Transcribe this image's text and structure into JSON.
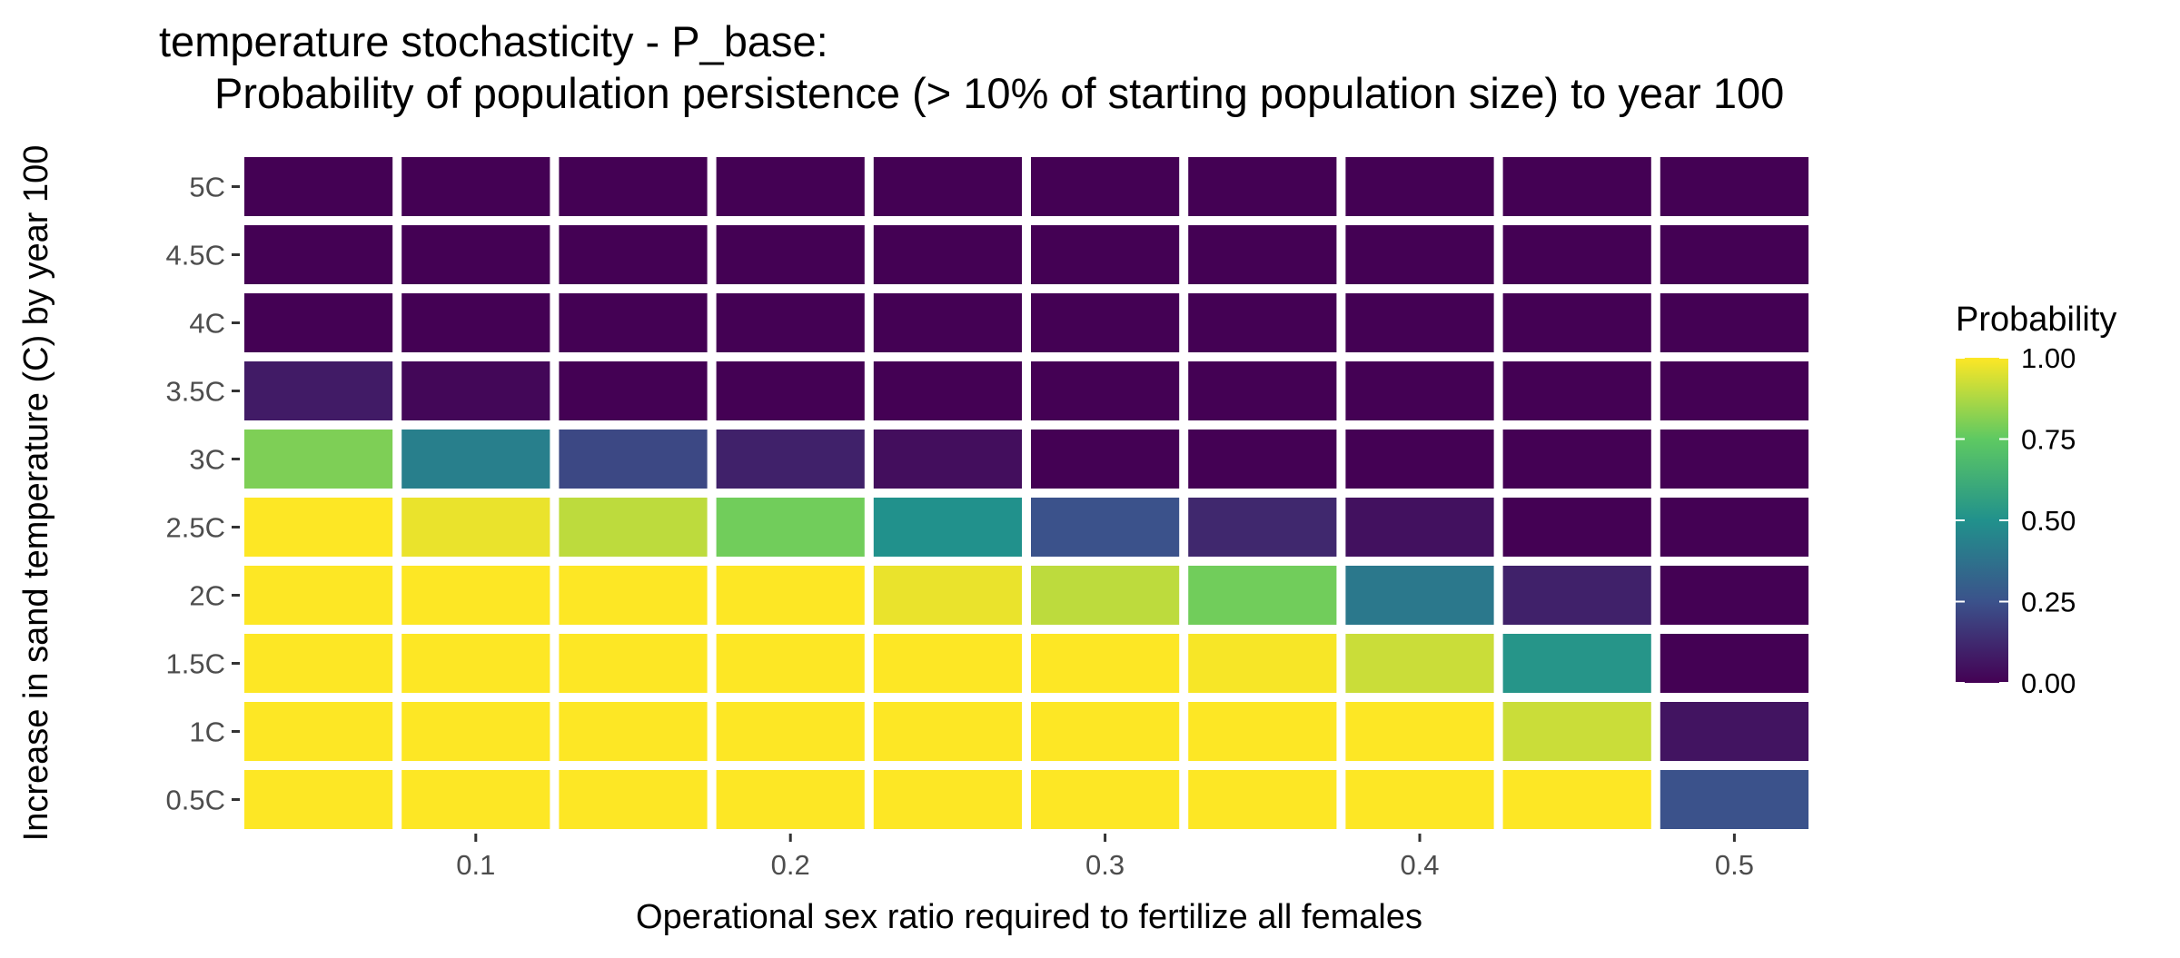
{
  "chart_data": {
    "type": "heatmap",
    "title": "temperature stochasticity - P_base:",
    "subtitle": "Probability of population persistence (> 10% of starting population size) to year 100",
    "xlabel": "Operational sex ratio required to fertilize all females",
    "ylabel": "Increase in sand temperature (C) by year 100",
    "x": [
      0.05,
      0.1,
      0.15,
      0.2,
      0.25,
      0.3,
      0.35,
      0.4,
      0.45,
      0.5
    ],
    "x_ticks": [
      0.1,
      0.2,
      0.3,
      0.4,
      0.5
    ],
    "x_tick_labels": [
      "0.1",
      "0.2",
      "0.3",
      "0.4",
      "0.5"
    ],
    "y_categories": [
      "0.5C",
      "1C",
      "1.5C",
      "2C",
      "2.5C",
      "3C",
      "3.5C",
      "4C",
      "4.5C",
      "5C"
    ],
    "values": [
      [
        1.0,
        1.0,
        1.0,
        1.0,
        1.0,
        1.0,
        1.0,
        1.0,
        1.0,
        0.25
      ],
      [
        1.0,
        1.0,
        1.0,
        1.0,
        1.0,
        1.0,
        1.0,
        1.0,
        0.92,
        0.06
      ],
      [
        1.0,
        1.0,
        1.0,
        1.0,
        1.0,
        1.0,
        0.99,
        0.92,
        0.52,
        0.0
      ],
      [
        1.0,
        1.0,
        1.0,
        1.0,
        0.97,
        0.9,
        0.78,
        0.4,
        0.1,
        0.0
      ],
      [
        1.0,
        0.97,
        0.9,
        0.78,
        0.5,
        0.25,
        0.12,
        0.05,
        0.0,
        0.0
      ],
      [
        0.8,
        0.43,
        0.22,
        0.1,
        0.04,
        0.0,
        0.0,
        0.0,
        0.0,
        0.0
      ],
      [
        0.08,
        0.02,
        0.0,
        0.0,
        0.0,
        0.0,
        0.0,
        0.0,
        0.0,
        0.0
      ],
      [
        0.0,
        0.0,
        0.0,
        0.0,
        0.0,
        0.0,
        0.0,
        0.0,
        0.0,
        0.0
      ],
      [
        0.0,
        0.0,
        0.0,
        0.0,
        0.0,
        0.0,
        0.0,
        0.0,
        0.0,
        0.0
      ],
      [
        0.0,
        0.0,
        0.0,
        0.0,
        0.0,
        0.0,
        0.0,
        0.0,
        0.0,
        0.0
      ]
    ],
    "value_range": [
      0,
      1
    ],
    "colormap": "viridis",
    "colormap_stops": [
      "#440154",
      "#3b528b",
      "#21918c",
      "#5ec962",
      "#fde725"
    ],
    "legend": {
      "title": "Probability",
      "position": "right",
      "ticks": [
        0.0,
        0.25,
        0.5,
        0.75,
        1.0
      ],
      "tick_labels": [
        "0.00",
        "0.25",
        "0.50",
        "0.75",
        "1.00"
      ]
    },
    "background": "#ffffff",
    "tile_border_color": "#ffffff",
    "grid": false
  }
}
